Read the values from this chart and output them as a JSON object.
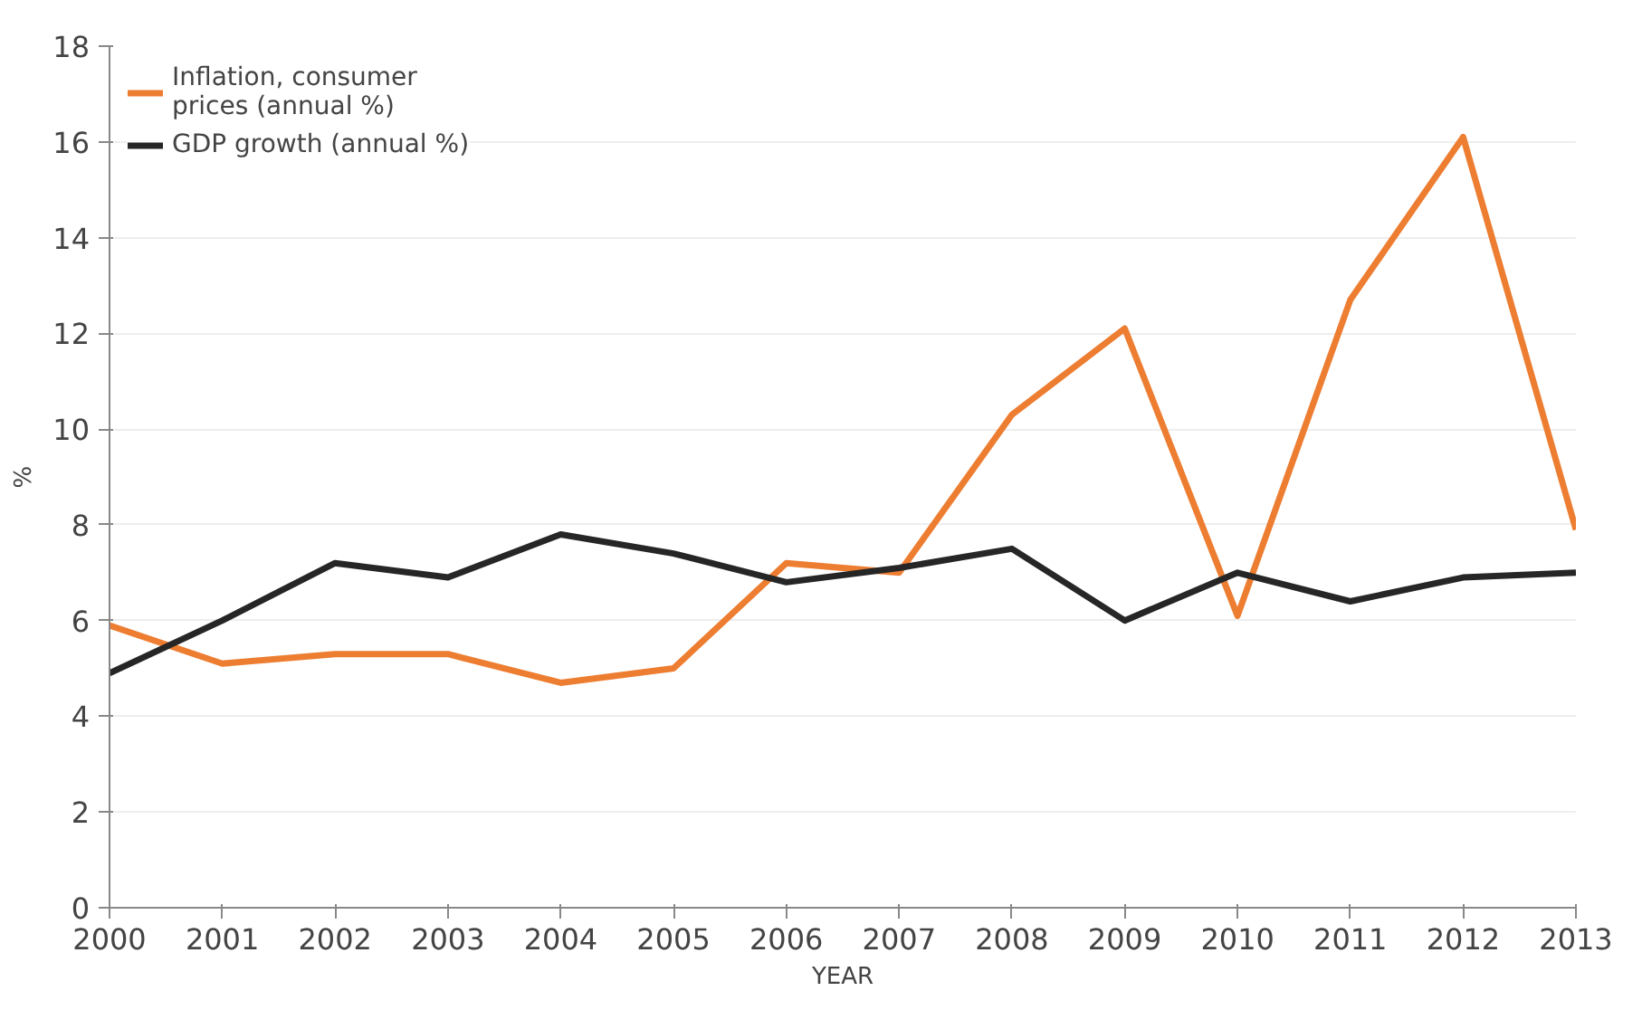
{
  "chart_data": {
    "type": "line",
    "xlabel": "YEAR",
    "ylabel": "%",
    "x": [
      2000,
      2001,
      2002,
      2003,
      2004,
      2005,
      2006,
      2007,
      2008,
      2009,
      2010,
      2011,
      2012,
      2013
    ],
    "series": [
      {
        "name": "Inflation, consumer prices (annual %)",
        "color": "#ed7d31",
        "values": [
          5.9,
          5.1,
          5.3,
          5.3,
          4.7,
          5.0,
          7.2,
          7.0,
          10.3,
          12.1,
          6.1,
          12.7,
          16.1,
          7.9
        ]
      },
      {
        "name": "GDP growth (annual %)",
        "color": "#262626",
        "values": [
          4.9,
          6.0,
          7.2,
          6.9,
          7.8,
          7.4,
          6.8,
          7.1,
          7.5,
          6.0,
          7.0,
          6.4,
          6.9,
          7.0
        ]
      }
    ],
    "xlim": [
      2000,
      2013
    ],
    "xticks": [
      2000,
      2001,
      2002,
      2003,
      2004,
      2005,
      2006,
      2007,
      2008,
      2009,
      2010,
      2011,
      2012,
      2013
    ],
    "ylim": [
      0,
      18
    ],
    "yticks": [
      0,
      2,
      4,
      6,
      8,
      10,
      12,
      14,
      16,
      18
    ],
    "grid": "y",
    "legend": "top left",
    "marker": "none",
    "line_style": "solid"
  }
}
